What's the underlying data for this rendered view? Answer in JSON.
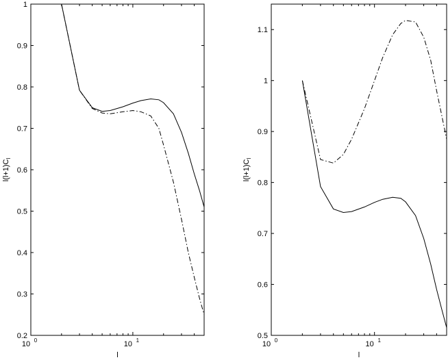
{
  "chart_data": [
    {
      "type": "line",
      "x_scale": "log",
      "xlim": [
        1,
        50
      ],
      "ylim": [
        0.2,
        1.0
      ],
      "xlabel": "l",
      "ylabel": "l(l+1)C",
      "ylabel_subscript": "l",
      "x_ticks": [
        {
          "value": 1,
          "base": "10",
          "exp": "0"
        },
        {
          "value": 10,
          "base": "10",
          "exp": "1"
        }
      ],
      "y_ticks": [
        0.2,
        0.3,
        0.4,
        0.5,
        0.6,
        0.7,
        0.8,
        0.9,
        1.0
      ],
      "y_tick_labels": [
        "0.2",
        "0.3",
        "0.4",
        "0.5",
        "0.6",
        "0.7",
        "0.8",
        "0.9",
        "1"
      ],
      "series": [
        {
          "style": "solid",
          "x": [
            2,
            3,
            4,
            5,
            6,
            8,
            10,
            12,
            15,
            18,
            20,
            25,
            30,
            35,
            40,
            45,
            50
          ],
          "y": [
            1.0,
            0.792,
            0.75,
            0.741,
            0.743,
            0.752,
            0.761,
            0.767,
            0.771,
            0.769,
            0.762,
            0.735,
            0.69,
            0.64,
            0.59,
            0.55,
            0.51
          ]
        },
        {
          "style": "dash-dot",
          "x": [
            2,
            3,
            4,
            5,
            6,
            8,
            10,
            12,
            15,
            18,
            20,
            25,
            30,
            35,
            40,
            45,
            50
          ],
          "y": [
            1.0,
            0.792,
            0.748,
            0.737,
            0.735,
            0.74,
            0.743,
            0.74,
            0.73,
            0.7,
            0.66,
            0.57,
            0.48,
            0.4,
            0.34,
            0.29,
            0.25
          ]
        }
      ]
    },
    {
      "type": "line",
      "x_scale": "log",
      "xlim": [
        1,
        50
      ],
      "ylim": [
        0.5,
        1.15
      ],
      "xlabel": "l",
      "ylabel": "l(l+1)C",
      "ylabel_subscript": "l",
      "x_ticks": [
        {
          "value": 1,
          "base": "10",
          "exp": "0"
        },
        {
          "value": 10,
          "base": "10",
          "exp": "1"
        }
      ],
      "y_ticks": [
        0.5,
        0.6,
        0.7,
        0.8,
        0.9,
        1.0,
        1.1
      ],
      "y_tick_labels": [
        "0.5",
        "0.6",
        "0.7",
        "0.8",
        "0.9",
        "1",
        "1.1"
      ],
      "series": [
        {
          "style": "solid",
          "x": [
            2,
            3,
            4,
            5,
            6,
            8,
            10,
            12,
            15,
            18,
            20,
            25,
            30,
            35,
            40,
            45,
            50
          ],
          "y": [
            1.0,
            0.792,
            0.748,
            0.741,
            0.743,
            0.752,
            0.761,
            0.767,
            0.771,
            0.769,
            0.762,
            0.735,
            0.69,
            0.64,
            0.59,
            0.55,
            0.515
          ]
        },
        {
          "style": "dash-dot",
          "x": [
            2,
            3,
            4,
            5,
            6,
            8,
            10,
            12,
            15,
            18,
            20,
            25,
            30,
            35,
            40,
            45,
            50
          ],
          "y": [
            1.0,
            0.845,
            0.838,
            0.855,
            0.885,
            0.945,
            1.0,
            1.045,
            1.09,
            1.112,
            1.118,
            1.115,
            1.085,
            1.04,
            0.98,
            0.93,
            0.885
          ]
        }
      ]
    }
  ]
}
